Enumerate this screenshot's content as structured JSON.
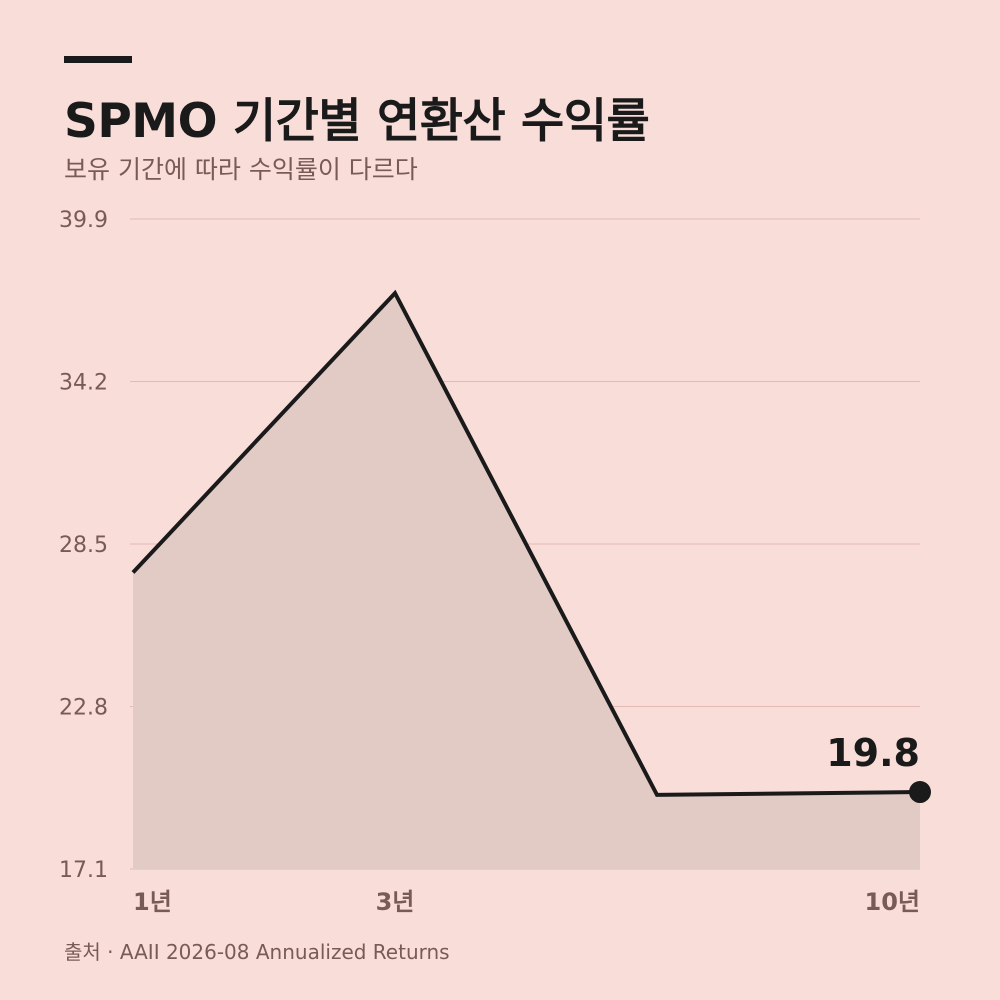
{
  "header": {
    "title": "SPMO 기간별 연환산 수익률",
    "subtitle": "보유 기간에 따라 수익률이 다르다"
  },
  "chart_data": {
    "type": "area",
    "x_labels": [
      "1년",
      "3년",
      "10년"
    ],
    "points": [
      {
        "period": "1년",
        "value": 27.5
      },
      {
        "period": "3년",
        "value": 37.3
      },
      {
        "period": "",
        "value": 19.7
      },
      {
        "period": "10년",
        "value": 19.8
      }
    ],
    "yticks": [
      "39.9",
      "34.2",
      "28.5",
      "22.8",
      "17.1"
    ],
    "ylim": [
      17.1,
      39.9
    ],
    "grid": true,
    "callout": "19.8",
    "line_color": "#1a1a1a",
    "fill_color": "#e2cbc5",
    "grid_color": "#e3b9b4"
  },
  "footer": {
    "source": "출처 · AAII 2026-08 Annualized Returns"
  }
}
